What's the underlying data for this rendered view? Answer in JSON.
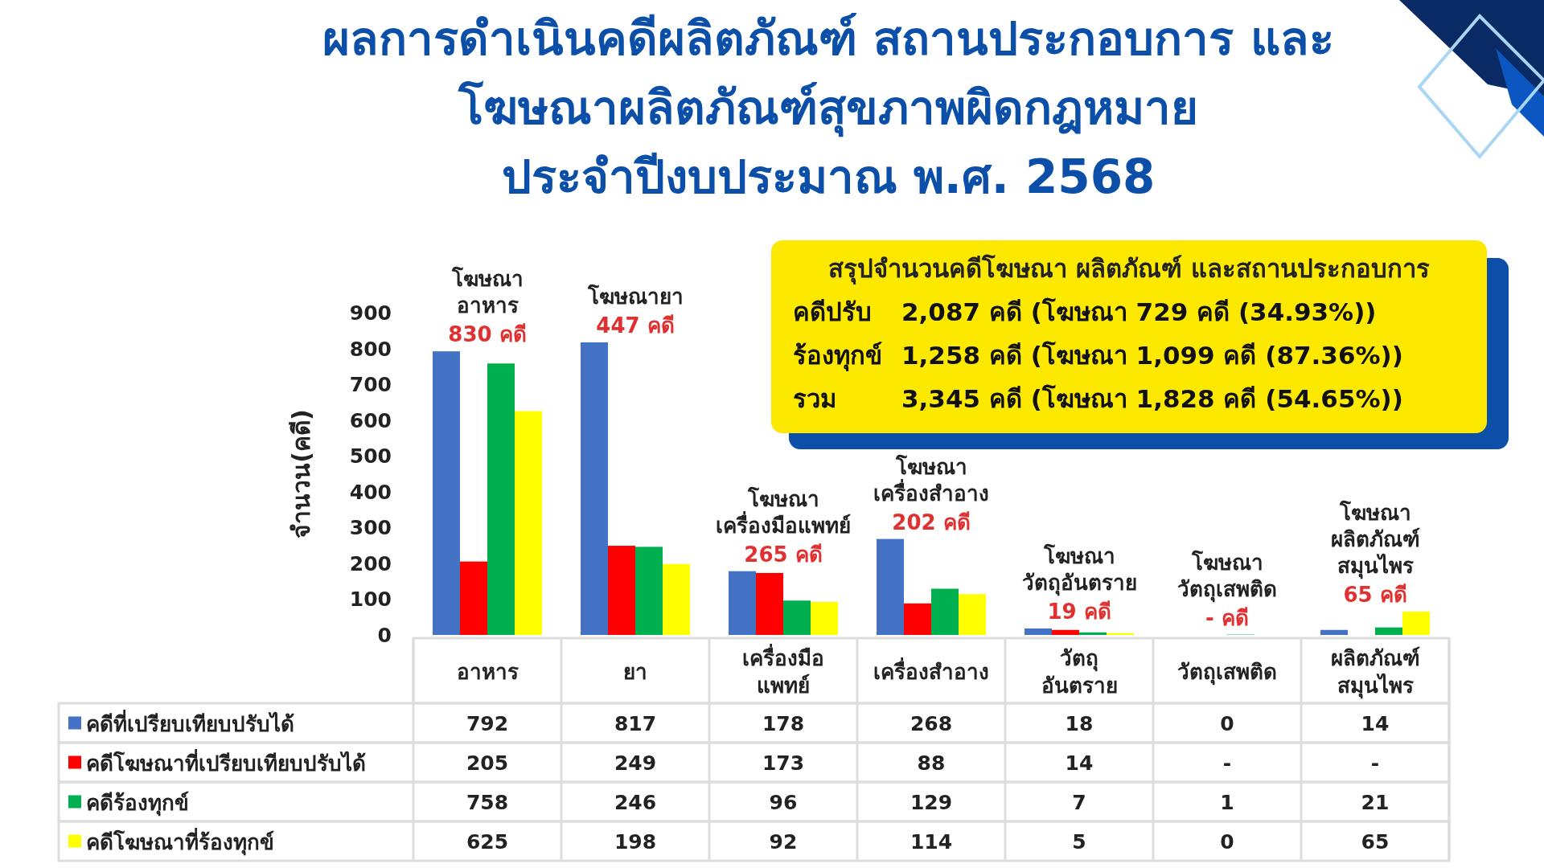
{
  "chart_data": [
    {
      "type": "bar",
      "title": "ผลการดำเนินคดีผลิตภัณฑ์  สถานประกอบการ และ\nโฆษณาผลิตภัณฑ์สุขภาพผิดกฎหมาย\nประจำปีงบประมาณ พ.ศ. 2568",
      "ylabel": "จำนวน(คดี)",
      "categories": [
        "อาหาร",
        "ยา",
        "เครื่องมือ\nแพทย์",
        "เครื่องสำอาง",
        "วัตถุ\nอันตราย",
        "วัตถุเสพติด",
        "ผลิตภัณฑ์\nสมุนไพร"
      ],
      "series": [
        {
          "name": "คดีที่เปรียบเทียบปรับได้",
          "color": "#4472c4",
          "values": [
            792,
            817,
            178,
            268,
            18,
            0,
            14
          ],
          "value_labels": [
            "792",
            "817",
            "178",
            "268",
            "18",
            "0",
            "14"
          ]
        },
        {
          "name": "คดีโฆษณาที่เปรียบเทียบปรับได้",
          "color": "#ff0000",
          "values": [
            205,
            249,
            173,
            88,
            14,
            null,
            null
          ],
          "value_labels": [
            "205",
            "249",
            "173",
            "88",
            "14",
            "-",
            "-"
          ]
        },
        {
          "name": "คดีร้องทุกข์",
          "color": "#00b050",
          "values": [
            758,
            246,
            96,
            129,
            7,
            1,
            21
          ],
          "value_labels": [
            "758",
            "246",
            "96",
            "129",
            "7",
            "1",
            "21"
          ]
        },
        {
          "name": "คดีโฆษณาที่ร้องทุกข์",
          "color": "#ffff00",
          "values": [
            625,
            198,
            92,
            114,
            5,
            0,
            65
          ],
          "value_labels": [
            "625",
            "198",
            "92",
            "114",
            "5",
            "0",
            "65"
          ]
        }
      ],
      "ylim": [
        0,
        900
      ],
      "yticks": [
        0,
        100,
        200,
        300,
        400,
        500,
        600,
        700,
        800,
        900
      ],
      "grid": false,
      "legend": "bottom",
      "annotations": [
        "โฆษณา\nอาหาร",
        "830 คดี",
        "โฆษณายา",
        "447 คดี",
        "โฆษณา\nเครื่องมือแพทย์",
        "265 คดี",
        "โฆษณา\nเครื่องสำอาง",
        "202 คดี",
        "โฆษณา\nวัตถุอันตราย",
        "19 คดี",
        "โฆษณา\nวัตถุเสพติด",
        "- คดี",
        "โฆษณา\nผลิตภัณฑ์\nสมุนไพร",
        "65 คดี"
      ]
    },
    {
      "type": "other",
      "title": "สรุปจำนวนคดีโฆษณา ผลิตภัณฑ์ และสถานประกอบการ",
      "annotations": [
        "คดีปรับ",
        "2,087 คดี (โฆษณา 729 คดี (34.93%))",
        "ร้องทุกข์",
        "1,258 คดี (โฆษณา 1,099 คดี (87.36%))",
        "รวม",
        "3,345 คดี (โฆษณา 1,828 คดี (54.65%))"
      ]
    }
  ]
}
